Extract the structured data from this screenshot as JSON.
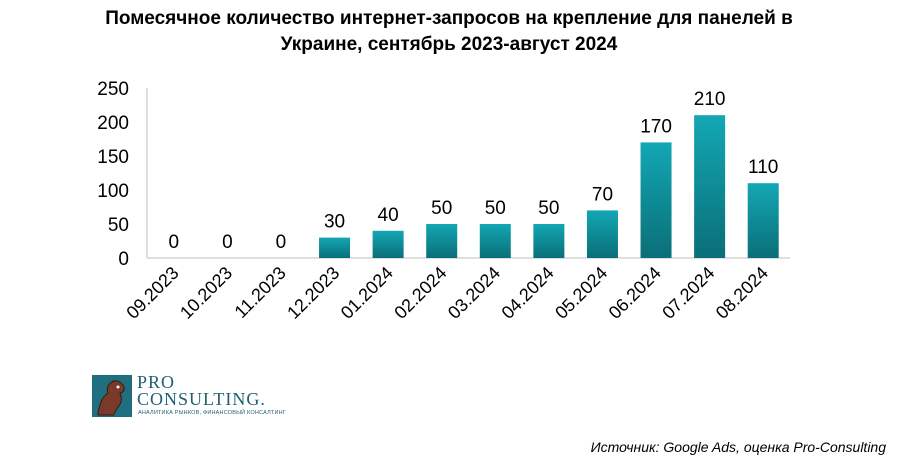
{
  "title": {
    "line1": "Помесячное количество интернет-запросов на крепление для панелей в",
    "line2": "Украине, сентябрь 2023-август 2024"
  },
  "chart_data": {
    "type": "bar",
    "title": "Помесячное количество интернет-запросов на крепление для панелей в Украине, сентябрь 2023-август 2024",
    "categories": [
      "09.2023",
      "10.2023",
      "11.2023",
      "12.2023",
      "01.2024",
      "02.2024",
      "03.2024",
      "04.2024",
      "05.2024",
      "06.2024",
      "07.2024",
      "08.2024"
    ],
    "values": [
      0,
      0,
      0,
      30,
      40,
      50,
      50,
      50,
      70,
      170,
      210,
      110
    ],
    "data_labels": [
      "0",
      "0",
      "0",
      "30",
      "40",
      "50",
      "50",
      "50",
      "70",
      "170",
      "210",
      "110"
    ],
    "ylim": [
      0,
      250
    ],
    "yticks": [
      0,
      50,
      100,
      150,
      200,
      250
    ],
    "grid": false,
    "legend": "none",
    "bar_color_top": "#13a7b4",
    "bar_color_bottom": "#0a6f78"
  },
  "logo": {
    "line1": "PRO",
    "line2": "CONSULTING.",
    "subtitle": "АНАЛИТИКА РЫНКОВ, ФИНАНСОВЫЙ КОНСАЛТИНГ"
  },
  "source": "Источник: Google Ads, оценка Pro-Consulting"
}
